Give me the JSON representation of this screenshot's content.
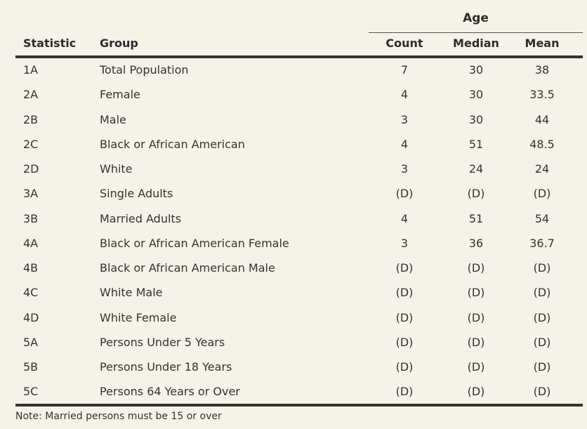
{
  "table": {
    "age_group_label": "Age",
    "headers": {
      "statistic": "Statistic",
      "group": "Group",
      "count": "Count",
      "median": "Median",
      "mean": "Mean"
    },
    "rows": [
      {
        "statistic": "1A",
        "group": "Total Population",
        "count": "7",
        "median": "30",
        "mean": "38"
      },
      {
        "statistic": "2A",
        "group": "Female",
        "count": "4",
        "median": "30",
        "mean": "33.5"
      },
      {
        "statistic": "2B",
        "group": "Male",
        "count": "3",
        "median": "30",
        "mean": "44"
      },
      {
        "statistic": "2C",
        "group": "Black or African American",
        "count": "4",
        "median": "51",
        "mean": "48.5"
      },
      {
        "statistic": "2D",
        "group": "White",
        "count": "3",
        "median": "24",
        "mean": "24"
      },
      {
        "statistic": "3A",
        "group": "Single Adults",
        "count": "(D)",
        "median": "(D)",
        "mean": "(D)"
      },
      {
        "statistic": "3B",
        "group": "Married Adults",
        "count": "4",
        "median": "51",
        "mean": "54"
      },
      {
        "statistic": "4A",
        "group": "Black or African American Female",
        "count": "3",
        "median": "36",
        "mean": "36.7"
      },
      {
        "statistic": "4B",
        "group": "Black or African American Male",
        "count": "(D)",
        "median": "(D)",
        "mean": "(D)"
      },
      {
        "statistic": "4C",
        "group": "White Male",
        "count": "(D)",
        "median": "(D)",
        "mean": "(D)"
      },
      {
        "statistic": "4D",
        "group": "White Female",
        "count": "(D)",
        "median": "(D)",
        "mean": "(D)"
      },
      {
        "statistic": "5A",
        "group": "Persons Under 5 Years",
        "count": "(D)",
        "median": "(D)",
        "mean": "(D)"
      },
      {
        "statistic": "5B",
        "group": "Persons Under 18 Years",
        "count": "(D)",
        "median": "(D)",
        "mean": "(D)"
      },
      {
        "statistic": "5C",
        "group": "Persons 64 Years or Over",
        "count": "(D)",
        "median": "(D)",
        "mean": "(D)"
      }
    ]
  },
  "note": "Note: Married persons must be 15 or over"
}
